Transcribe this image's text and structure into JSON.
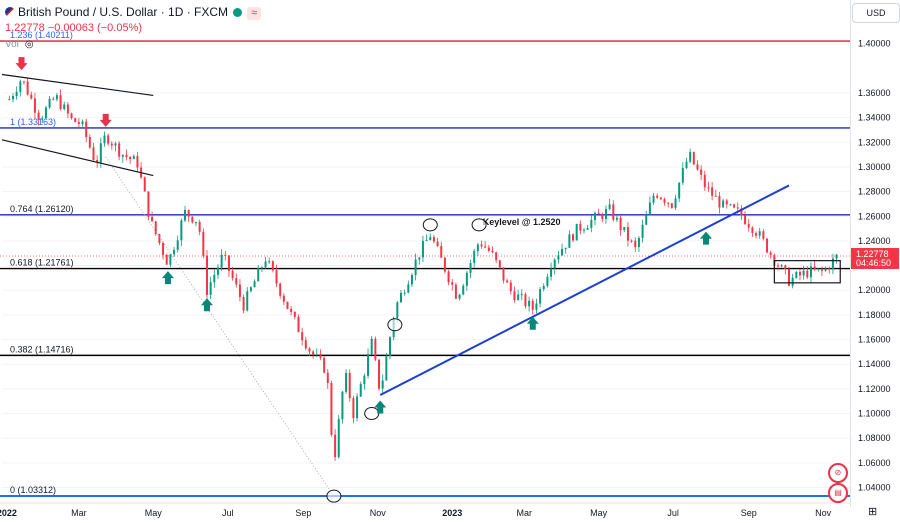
{
  "header": {
    "symbol": "British Pound / U.S. Dollar · 1D · FXCM",
    "wave_glyph": "≈",
    "price_line": "1.22778  −0.00063 (−0.05%)",
    "vol_label": "Vol",
    "vol_glyph": "◎"
  },
  "currency_button": "USD",
  "corner_icon": "⊞",
  "icons": {
    "flag": "gb-us-flag-icon",
    "status": "market-status-dot-icon",
    "alert": "alert-badge-icon",
    "flag_badge": "flag-badge-icon"
  },
  "colors": {
    "bull": "#089981",
    "bear": "#f23645",
    "fib_red": "#d8193b",
    "fib_blue": "#1c2bb8",
    "black": "#000000",
    "arrow_green": "#08867a",
    "arrow_red": "#e8334a",
    "trend": "#1f3fd1"
  },
  "chart_data": {
    "type": "candlestick",
    "title": "British Pound / U.S. Dollar · 1D · FXCM",
    "x_tick_labels": [
      "2022",
      "Mar",
      "May",
      "Jul",
      "Sep",
      "Nov",
      "2023",
      "Mar",
      "May",
      "Jul",
      "Sep",
      "Nov"
    ],
    "y_tick_labels": [
      "1.40000",
      "1.36000",
      "1.34000",
      "1.32000",
      "1.30000",
      "1.28000",
      "1.26000",
      "1.24000",
      "1.22000",
      "1.20000",
      "1.18000",
      "1.16000",
      "1.14000",
      "1.12000",
      "1.10000",
      "1.08000",
      "1.06000",
      "1.04000"
    ],
    "y_ticks": [
      1.4,
      1.36,
      1.34,
      1.32,
      1.3,
      1.28,
      1.26,
      1.24,
      1.22,
      1.2,
      1.18,
      1.16,
      1.14,
      1.12,
      1.1,
      1.08,
      1.06,
      1.04
    ],
    "current_price": "1.22778",
    "countdown": "04:46:50",
    "fib_levels": [
      {
        "label": "1.236 (1.40211)",
        "value": 1.40211,
        "color": "#d8193b"
      },
      {
        "label": "1 (1.33163)",
        "value": 1.33163,
        "color": "#1c2bb8"
      },
      {
        "label": "0.764 (1.26120)",
        "value": 1.2612,
        "color": "#1c2bb8"
      },
      {
        "label": "0.618 (1.21761)",
        "value": 1.21761,
        "color": "#000000"
      },
      {
        "label": "0.382 (1.14716)",
        "value": 1.14716,
        "color": "#000000"
      },
      {
        "label": "0 (1.03312)",
        "value": 1.03312,
        "color": "#1a73e8"
      }
    ],
    "keylevel_label": "Keylevel @ 1.2520",
    "price_path": [
      [
        "2022-01-03",
        1.355
      ],
      [
        "2022-01-13",
        1.372
      ],
      [
        "2022-01-28",
        1.34
      ],
      [
        "2022-02-10",
        1.357
      ],
      [
        "2022-02-23",
        1.338
      ],
      [
        "2022-03-03",
        1.335
      ],
      [
        "2022-03-15",
        1.303
      ],
      [
        "2022-03-23",
        1.326
      ],
      [
        "2022-04-05",
        1.311
      ],
      [
        "2022-04-18",
        1.303
      ],
      [
        "2022-04-29",
        1.255
      ],
      [
        "2022-05-13",
        1.222
      ],
      [
        "2022-05-27",
        1.263
      ],
      [
        "2022-06-07",
        1.256
      ],
      [
        "2022-06-14",
        1.2
      ],
      [
        "2022-06-27",
        1.228
      ],
      [
        "2022-07-14",
        1.188
      ],
      [
        "2022-08-01",
        1.226
      ],
      [
        "2022-08-22",
        1.18
      ],
      [
        "2022-09-07",
        1.15
      ],
      [
        "2022-09-20",
        1.135
      ],
      [
        "2022-09-26",
        1.06
      ],
      [
        "2022-10-05",
        1.133
      ],
      [
        "2022-10-12",
        1.1
      ],
      [
        "2022-10-27",
        1.157
      ],
      [
        "2022-11-03",
        1.117
      ],
      [
        "2022-11-15",
        1.185
      ],
      [
        "2022-12-05",
        1.23
      ],
      [
        "2022-12-14",
        1.245
      ],
      [
        "2023-01-05",
        1.195
      ],
      [
        "2023-01-23",
        1.24
      ],
      [
        "2023-02-02",
        1.23
      ],
      [
        "2023-02-17",
        1.2
      ],
      [
        "2023-03-08",
        1.185
      ],
      [
        "2023-03-24",
        1.225
      ],
      [
        "2023-04-14",
        1.25
      ],
      [
        "2023-05-10",
        1.265
      ],
      [
        "2023-05-31",
        1.233
      ],
      [
        "2023-06-16",
        1.28
      ],
      [
        "2023-06-30",
        1.27
      ],
      [
        "2023-07-14",
        1.31
      ],
      [
        "2023-07-28",
        1.283
      ],
      [
        "2023-08-11",
        1.268
      ],
      [
        "2023-08-25",
        1.262
      ],
      [
        "2023-09-08",
        1.247
      ],
      [
        "2023-09-22",
        1.225
      ],
      [
        "2023-10-04",
        1.208
      ],
      [
        "2023-10-20",
        1.215
      ],
      [
        "2023-11-01",
        1.215
      ],
      [
        "2023-11-13",
        1.228
      ]
    ],
    "markers": {
      "up_arrows": [
        [
          "2022-05-13",
          1.222
        ],
        [
          "2022-06-14",
          1.2
        ],
        [
          "2022-11-03",
          1.117
        ],
        [
          "2023-03-08",
          1.185
        ],
        [
          "2023-07-28",
          1.254
        ]
      ],
      "down_arrows": [
        [
          "2022-01-13",
          1.372
        ],
        [
          "2022-03-23",
          1.326
        ]
      ],
      "circles": [
        [
          "2022-09-26",
          1.033
        ],
        [
          "2022-10-27",
          1.1
        ],
        [
          "2022-11-15",
          1.172
        ],
        [
          "2022-12-14",
          1.253
        ],
        [
          "2023-01-23",
          1.253
        ]
      ]
    },
    "channel_lines": [
      [
        [
          "2021-12-28",
          1.375
        ],
        [
          "2022-05-01",
          1.358
        ]
      ],
      [
        [
          "2021-12-28",
          1.322
        ],
        [
          "2022-05-01",
          1.293
        ]
      ]
    ],
    "trend_line": [
      [
        "2022-11-03",
        1.115
      ],
      [
        "2023-10-04",
        1.285
      ]
    ],
    "projection_line": [
      [
        "2022-03-23",
        1.308
      ],
      [
        "2022-09-26",
        1.033
      ]
    ],
    "range_box": [
      [
        "2023-09-22",
        1.224
      ],
      [
        "2023-11-15",
        1.206
      ]
    ],
    "x_domain": [
      "2021-12-28",
      "2023-11-23"
    ],
    "y_domain": [
      1.02985,
      1.43542
    ]
  }
}
